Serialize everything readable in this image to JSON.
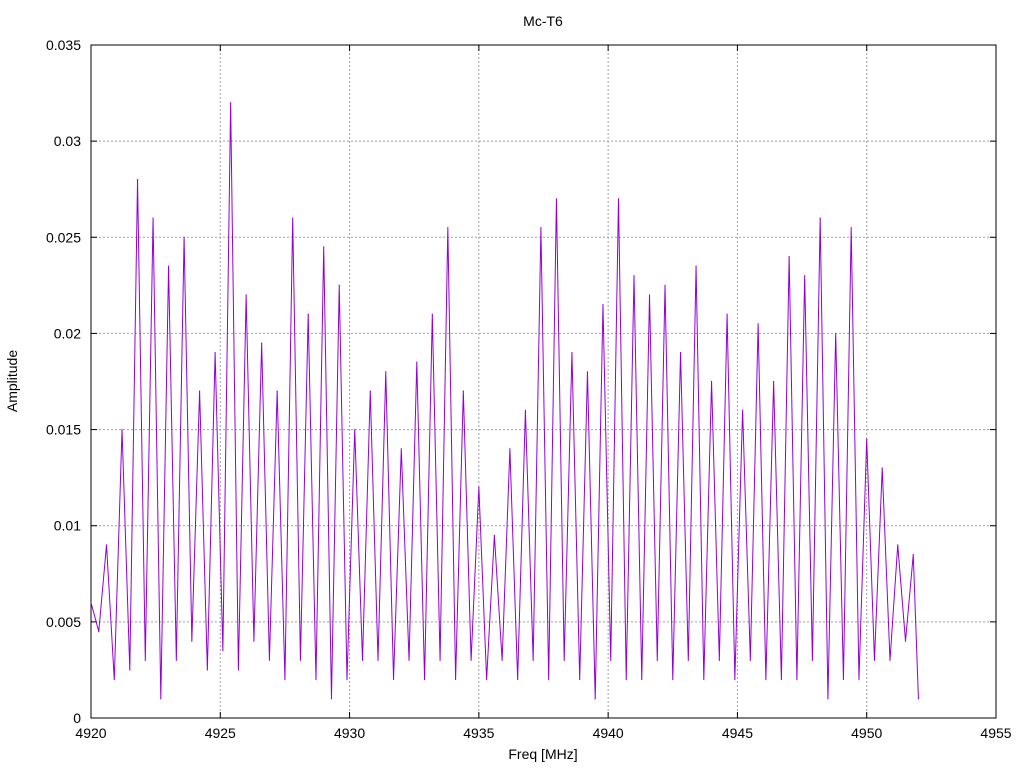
{
  "chart_data": {
    "type": "line",
    "title": "Mc-T6",
    "xlabel": "Freq [MHz]",
    "ylabel": "Amplitude",
    "xlim": [
      4920,
      4955
    ],
    "ylim": [
      0,
      0.035
    ],
    "xticks": [
      4920,
      4925,
      4930,
      4935,
      4940,
      4945,
      4950,
      4955
    ],
    "xtick_labels": [
      "4920",
      "4925",
      "4930",
      "4935",
      "4940",
      "4945",
      "4950",
      "4955"
    ],
    "yticks": [
      0,
      0.005,
      0.01,
      0.015,
      0.02,
      0.025,
      0.03,
      0.035
    ],
    "ytick_labels": [
      "0",
      "0.005",
      "0.01",
      "0.015",
      "0.02",
      "0.025",
      "0.03",
      "0.035"
    ],
    "grid": true,
    "series_color": "#9400d3",
    "series": [
      {
        "x": [
          4920.0,
          4920.3,
          4920.6,
          4920.9,
          4921.2,
          4921.5,
          4921.8,
          4922.1,
          4922.4,
          4922.7,
          4923.0,
          4923.3,
          4923.6,
          4923.9,
          4924.2,
          4924.5,
          4924.8,
          4925.1,
          4925.4,
          4925.7,
          4926.0,
          4926.3,
          4926.6,
          4926.9,
          4927.2,
          4927.5,
          4927.8,
          4928.1,
          4928.4,
          4928.7,
          4929.0,
          4929.3,
          4929.6,
          4929.9,
          4930.2,
          4930.5,
          4930.8,
          4931.1,
          4931.4,
          4931.7,
          4932.0,
          4932.3,
          4932.6,
          4932.9,
          4933.2,
          4933.5,
          4933.8,
          4934.1,
          4934.4,
          4934.7,
          4935.0,
          4935.3,
          4935.6,
          4935.9,
          4936.2,
          4936.5,
          4936.8,
          4937.1,
          4937.4,
          4937.7,
          4938.0,
          4938.3,
          4938.6,
          4938.9,
          4939.2,
          4939.5,
          4939.8,
          4940.1,
          4940.4,
          4940.7,
          4941.0,
          4941.3,
          4941.6,
          4941.9,
          4942.2,
          4942.5,
          4942.8,
          4943.1,
          4943.4,
          4943.7,
          4944.0,
          4944.3,
          4944.6,
          4944.9,
          4945.2,
          4945.5,
          4945.8,
          4946.1,
          4946.4,
          4946.7,
          4947.0,
          4947.3,
          4947.6,
          4947.9,
          4948.2,
          4948.5,
          4948.8,
          4949.1,
          4949.4,
          4949.7,
          4950.0,
          4950.3,
          4950.6,
          4950.9,
          4951.2,
          4951.5,
          4951.8,
          4952.0
        ],
        "y": [
          0.006,
          0.0045,
          0.009,
          0.002,
          0.015,
          0.0025,
          0.028,
          0.003,
          0.026,
          0.001,
          0.0235,
          0.003,
          0.025,
          0.004,
          0.017,
          0.0025,
          0.019,
          0.0035,
          0.032,
          0.0025,
          0.022,
          0.004,
          0.0195,
          0.003,
          0.017,
          0.002,
          0.026,
          0.003,
          0.021,
          0.002,
          0.0245,
          0.001,
          0.0225,
          0.002,
          0.015,
          0.003,
          0.017,
          0.003,
          0.018,
          0.002,
          0.014,
          0.003,
          0.0185,
          0.002,
          0.021,
          0.003,
          0.0255,
          0.002,
          0.017,
          0.003,
          0.012,
          0.002,
          0.0095,
          0.003,
          0.014,
          0.002,
          0.016,
          0.003,
          0.0255,
          0.002,
          0.027,
          0.003,
          0.019,
          0.002,
          0.018,
          0.001,
          0.0215,
          0.003,
          0.027,
          0.002,
          0.023,
          0.002,
          0.022,
          0.003,
          0.0225,
          0.002,
          0.019,
          0.003,
          0.0235,
          0.002,
          0.0175,
          0.003,
          0.021,
          0.002,
          0.016,
          0.003,
          0.0205,
          0.002,
          0.0175,
          0.002,
          0.024,
          0.002,
          0.023,
          0.003,
          0.026,
          0.001,
          0.02,
          0.002,
          0.0255,
          0.002,
          0.0145,
          0.003,
          0.013,
          0.003,
          0.009,
          0.004,
          0.0085,
          0.001
        ]
      }
    ]
  }
}
